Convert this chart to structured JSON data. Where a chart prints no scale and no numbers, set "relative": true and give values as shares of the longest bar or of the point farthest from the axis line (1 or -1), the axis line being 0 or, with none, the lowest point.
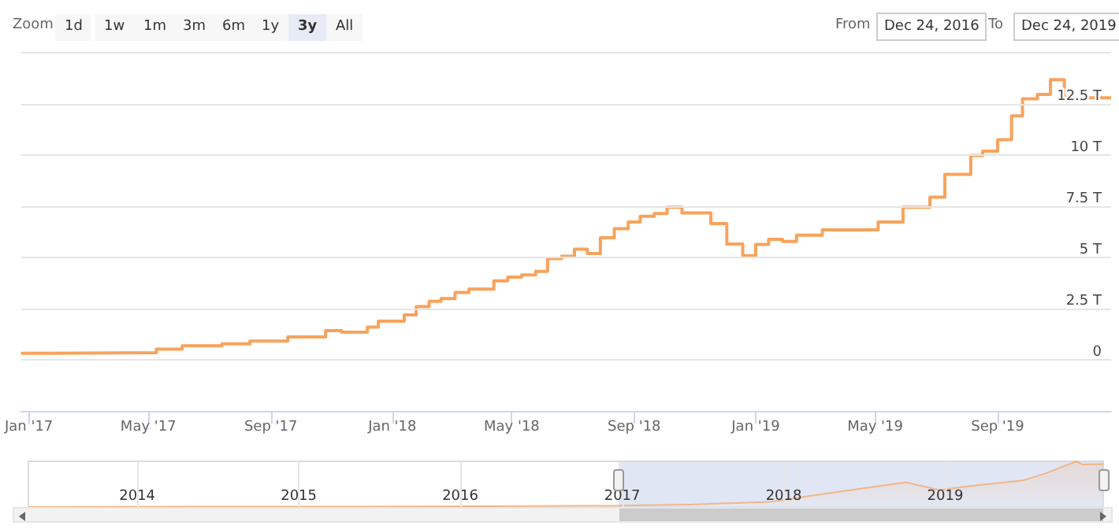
{
  "chart_data": [
    {
      "type": "step",
      "annotations": [
        "Zoom",
        "1d",
        "1w",
        "1m",
        "3m",
        "6m",
        "1y",
        "3y",
        "All",
        "From",
        "Dec 24, 2016",
        "To",
        "Dec 24, 2019"
      ],
      "x": [
        "2016-12-24",
        "2017-01-22",
        "2017-05-09",
        "2017-06-04",
        "2017-07-14",
        "2017-08-11",
        "2017-09-18",
        "2017-10-26",
        "2017-11-11",
        "2017-12-07",
        "2017-12-18",
        "2018-01-13",
        "2018-01-25",
        "2018-02-07",
        "2018-02-19",
        "2018-03-05",
        "2018-03-19",
        "2018-04-13",
        "2018-04-27",
        "2018-05-11",
        "2018-05-25",
        "2018-06-06",
        "2018-06-20",
        "2018-07-03",
        "2018-07-16",
        "2018-07-29",
        "2018-08-12",
        "2018-08-26",
        "2018-09-07",
        "2018-09-21",
        "2018-10-04",
        "2018-10-19",
        "2018-11-17",
        "2018-12-03",
        "2018-12-19",
        "2019-01-01",
        "2019-01-14",
        "2019-01-28",
        "2019-02-11",
        "2019-03-09",
        "2019-05-04",
        "2019-05-29",
        "2019-06-25",
        "2019-07-10",
        "2019-08-05",
        "2019-08-17",
        "2019-09-01",
        "2019-09-15",
        "2019-09-26",
        "2019-10-11",
        "2019-10-24",
        "2019-11-07",
        "2019-11-20",
        "2019-12-24"
      ],
      "series": [
        {
          "color": "#f7a35c",
          "values": [
            0.32,
            0.35,
            0.52,
            0.68,
            0.78,
            0.91,
            1.12,
            1.42,
            1.35,
            1.6,
            1.88,
            2.19,
            2.6,
            2.86,
            2.99,
            3.29,
            3.45,
            3.86,
            4.04,
            4.14,
            4.32,
            4.94,
            5.06,
            5.4,
            5.19,
            5.96,
            6.4,
            6.73,
            7.01,
            7.14,
            7.45,
            7.17,
            6.65,
            5.65,
            5.09,
            5.63,
            5.88,
            5.78,
            6.09,
            6.35,
            6.73,
            7.45,
            7.94,
            9.06,
            9.98,
            10.19,
            10.75,
            11.91,
            12.75,
            12.96,
            13.68,
            12.7,
            12.8,
            12.8
          ]
        }
      ],
      "xlim": [
        "2016-12-24",
        "2019-12-24"
      ],
      "xticks": [
        {
          "value": "2017-01-01",
          "label": "Jan '17"
        },
        {
          "value": "2017-05-01",
          "label": "May '17"
        },
        {
          "value": "2017-09-01",
          "label": "Sep '17"
        },
        {
          "value": "2018-01-01",
          "label": "Jan '18"
        },
        {
          "value": "2018-05-01",
          "label": "May '18"
        },
        {
          "value": "2018-09-01",
          "label": "Sep '18"
        },
        {
          "value": "2019-01-01",
          "label": "Jan '19"
        },
        {
          "value": "2019-05-01",
          "label": "May '19"
        },
        {
          "value": "2019-09-01",
          "label": "Sep '19"
        }
      ],
      "ylim": [
        -2.5,
        15
      ],
      "yticks": [
        0,
        {
          "value": 2.5,
          "label": "2.5 T"
        },
        {
          "value": 5,
          "label": "5 T"
        },
        {
          "value": 7.5,
          "label": "7.5 T"
        },
        {
          "value": 10,
          "label": "10 T"
        },
        {
          "value": 12.5,
          "label": "12.5 T"
        },
        {
          "value": 15,
          "label": null
        }
      ],
      "grid": "y"
    },
    {
      "type": "area",
      "relative": true,
      "tick_labels": "x",
      "grid": "x",
      "x": [
        "2013-04-30",
        "2014-06-01",
        "2015-06-01",
        "2016-06-01",
        "2016-12-24",
        "2017-06-01",
        "2017-12-01",
        "2018-03-01",
        "2018-06-01",
        "2018-10-04",
        "2018-12-19",
        "2019-03-01",
        "2019-06-25",
        "2019-08-17",
        "2019-10-24",
        "2019-11-07",
        "2019-12-24"
      ],
      "series": [
        {
          "color": "#f7a35c",
          "values": [
            0,
            0.01,
            0.01,
            0.02,
            0.03,
            0.05,
            0.11,
            0.24,
            0.37,
            0.54,
            0.37,
            0.46,
            0.58,
            0.74,
            1,
            0.93,
            0.94
          ]
        }
      ],
      "xlim": [
        "2013-04-30",
        "2019-12-24"
      ],
      "xticks": [
        {
          "value": "2014-01-01",
          "label": "2014"
        },
        {
          "value": "2015-01-01",
          "label": "2015"
        },
        {
          "value": "2016-01-01",
          "label": "2016"
        },
        {
          "value": "2017-01-01",
          "label": "2017"
        },
        {
          "value": "2018-01-01",
          "label": "2018"
        },
        {
          "value": "2019-01-01",
          "label": "2019"
        }
      ],
      "bands": [
        {
          "axis": "x",
          "from": "2016-12-24",
          "to": "2019-12-24",
          "color": "#cdd6ec"
        }
      ]
    }
  ]
}
